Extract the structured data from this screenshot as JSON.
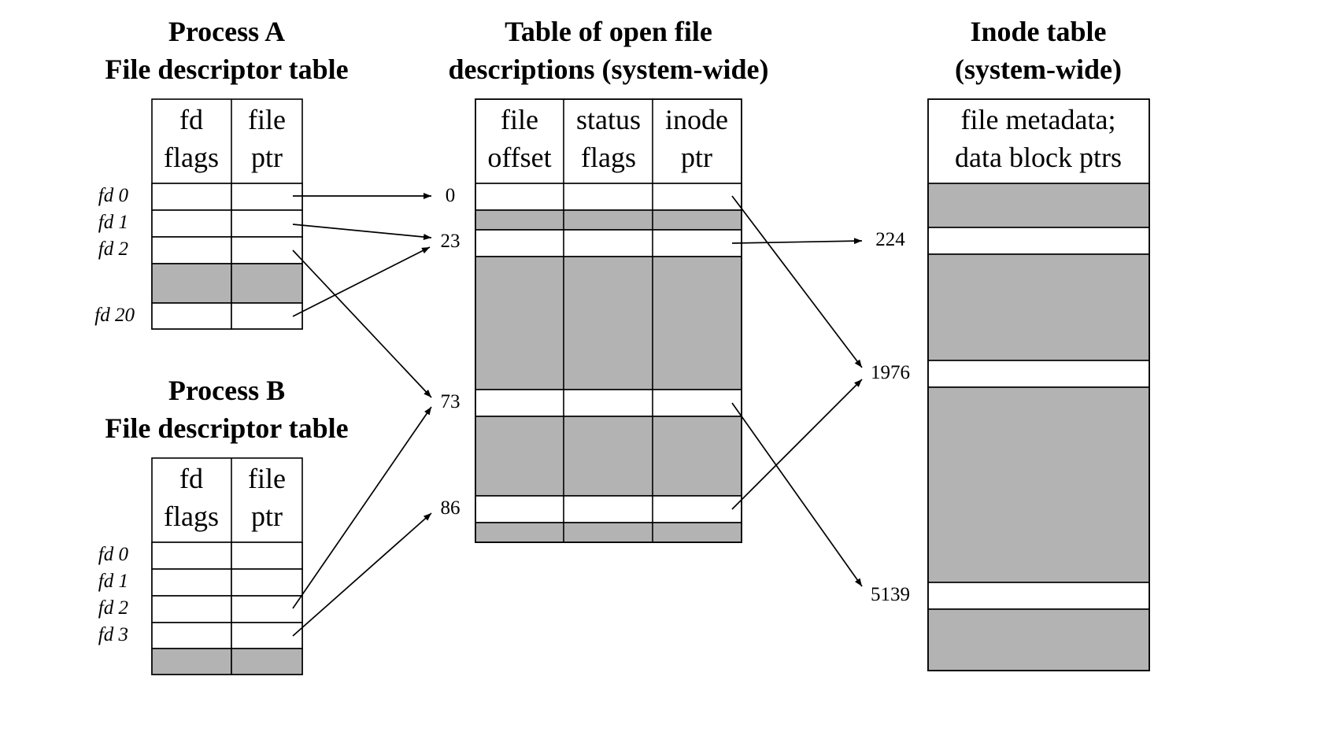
{
  "titles": {
    "process_a_line1": "Process A",
    "process_a_line2": "File descriptor table",
    "process_b_line1": "Process B",
    "process_b_line2": "File descriptor table",
    "open_files_line1": "Table of open file",
    "open_files_line2": "descriptions (system-wide)",
    "inode_line1": "Inode table",
    "inode_line2": "(system-wide)"
  },
  "fd_table_headers": {
    "col1_line1": "fd",
    "col1_line2": "flags",
    "col2_line1": "file",
    "col2_line2": "ptr"
  },
  "open_file_headers": {
    "col1_line1": "file",
    "col1_line2": "offset",
    "col2_line1": "status",
    "col2_line2": "flags",
    "col3_line1": "inode",
    "col3_line2": "ptr"
  },
  "inode_header": {
    "line1": "file metadata;",
    "line2": "data block ptrs"
  },
  "process_a_fds": [
    "fd 0",
    "fd 1",
    "fd 2",
    "fd 20"
  ],
  "process_b_fds": [
    "fd 0",
    "fd 1",
    "fd 2",
    "fd 3"
  ],
  "open_file_indices": [
    "0",
    "23",
    "73",
    "86"
  ],
  "inode_indices": [
    "224",
    "1976",
    "5139"
  ],
  "mappings": {
    "process_a": [
      {
        "fd": "fd 0",
        "open_file": "0"
      },
      {
        "fd": "fd 1",
        "open_file": "23"
      },
      {
        "fd": "fd 2",
        "open_file": "73"
      },
      {
        "fd": "fd 20",
        "open_file": "23"
      }
    ],
    "process_b": [
      {
        "fd": "fd 2",
        "open_file": "73"
      },
      {
        "fd": "fd 3",
        "open_file": "86"
      }
    ],
    "open_file_to_inode": [
      {
        "open_file": "0",
        "inode": "1976"
      },
      {
        "open_file": "23",
        "inode": "224"
      },
      {
        "open_file": "73",
        "inode": "5139"
      },
      {
        "open_file": "86",
        "inode": "1976"
      }
    ]
  },
  "colors": {
    "used_slot": "#b3b3b3",
    "free_slot": "#ffffff",
    "line": "#000000"
  }
}
